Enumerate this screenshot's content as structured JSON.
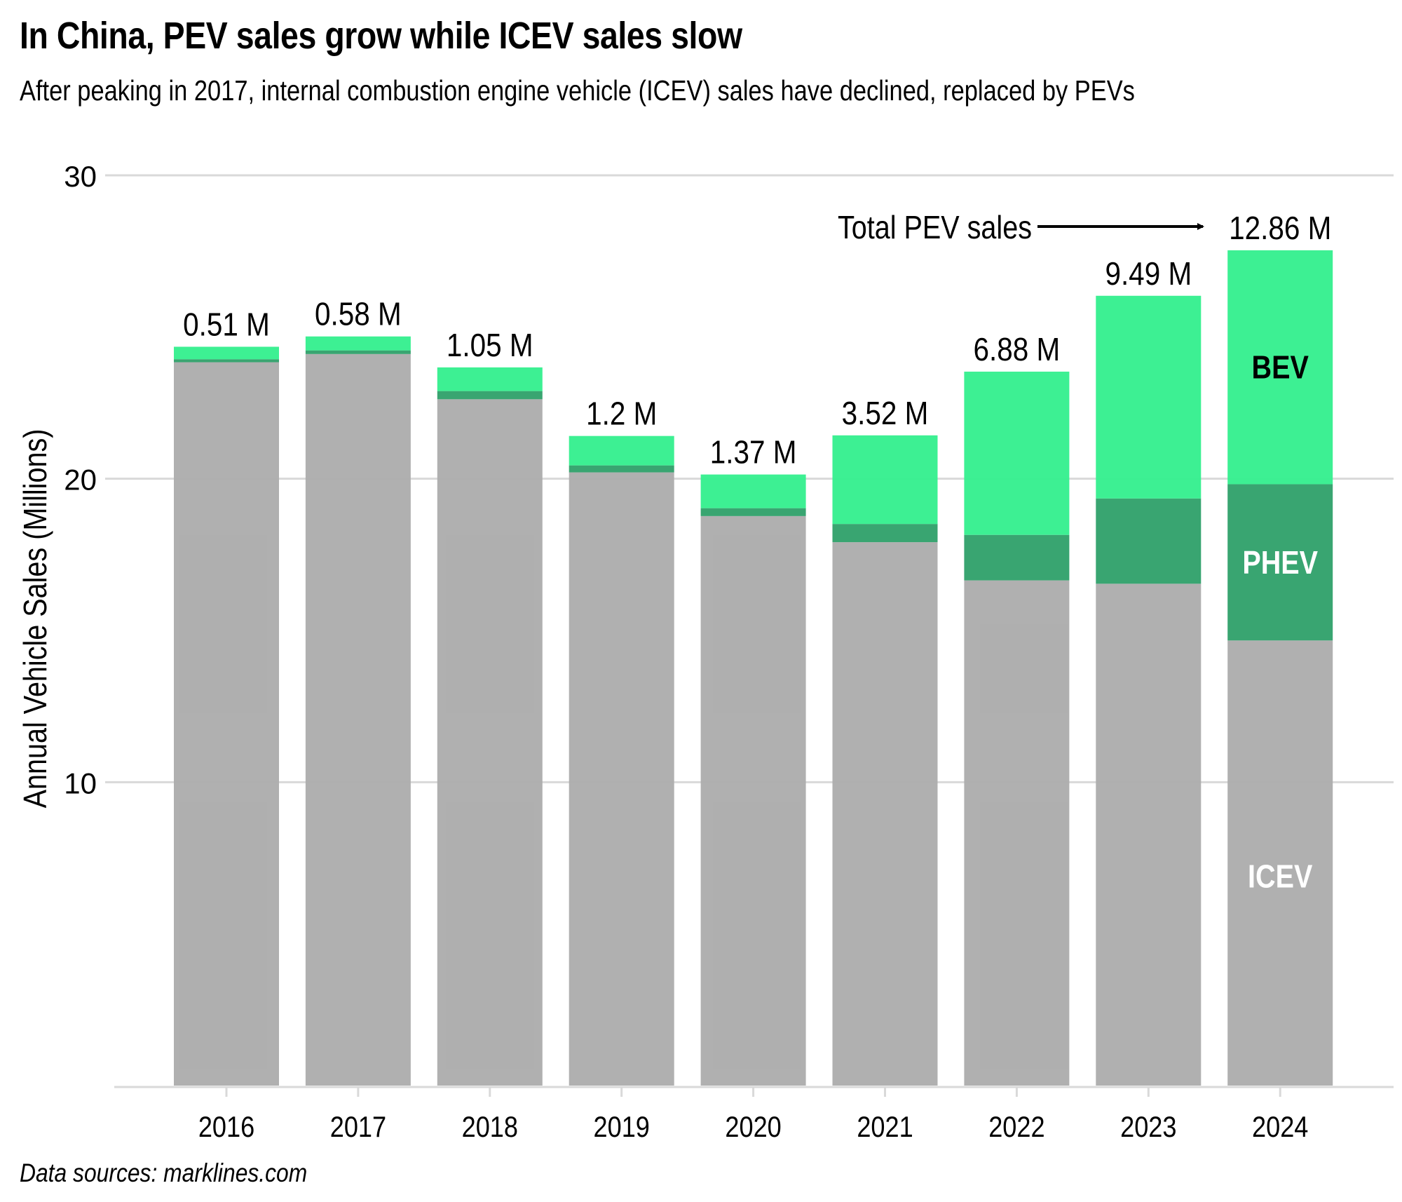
{
  "title": "In China, PEV sales grow while ICEV sales slow",
  "subtitle": "After peaking in 2017, internal combustion engine vehicle (ICEV) sales have declined, replaced by PEVs",
  "source": "Data sources: marklines.com",
  "colors": {
    "icev": "#adadad",
    "phev": "#33a26c",
    "bev": "#37f08f",
    "grid": "#d9d9d9",
    "text": "#000000"
  },
  "chart_data": {
    "type": "bar",
    "stacked": true,
    "title": "In China, PEV sales grow while ICEV sales slow",
    "subtitle": "After peaking in 2017, internal combustion engine vehicle (ICEV) sales have declined, replaced by PEVs",
    "xlabel": "",
    "ylabel": "Annual Vehicle Sales (Millions)",
    "ylim": [
      0,
      30
    ],
    "yticks": [
      10,
      20,
      30
    ],
    "grid": true,
    "categories": [
      "2016",
      "2017",
      "2018",
      "2019",
      "2020",
      "2021",
      "2022",
      "2023",
      "2024"
    ],
    "series": [
      {
        "name": "ICEV",
        "key": "icev",
        "values": [
          23.84,
          24.11,
          22.62,
          20.21,
          18.77,
          17.91,
          16.65,
          16.54,
          14.67
        ]
      },
      {
        "name": "PHEV",
        "key": "phev",
        "values": [
          0.1,
          0.12,
          0.27,
          0.23,
          0.26,
          0.6,
          1.5,
          2.81,
          5.15
        ]
      },
      {
        "name": "BEV",
        "key": "bev",
        "values": [
          0.41,
          0.46,
          0.78,
          0.97,
          1.11,
          2.92,
          5.38,
          6.68,
          7.71
        ]
      }
    ],
    "total_labels": [
      "0.51 M",
      "0.58 M",
      "1.05 M",
      "1.2 M",
      "1.37 M",
      "3.52 M",
      "6.88 M",
      "9.49 M",
      "12.86 M"
    ],
    "segment_labels": [
      {
        "text": "BEV",
        "series": "BEV",
        "category": "2024",
        "color": "#000000"
      },
      {
        "text": "PHEV",
        "series": "PHEV",
        "category": "2024",
        "color": "#ffffff"
      },
      {
        "text": "ICEV",
        "series": "ICEV",
        "category": "2024",
        "color": "#ffffff"
      }
    ],
    "annotation": {
      "text": "Total PEV sales",
      "points_to": "2024"
    },
    "legend": "inline-labels-on-last-bar"
  }
}
